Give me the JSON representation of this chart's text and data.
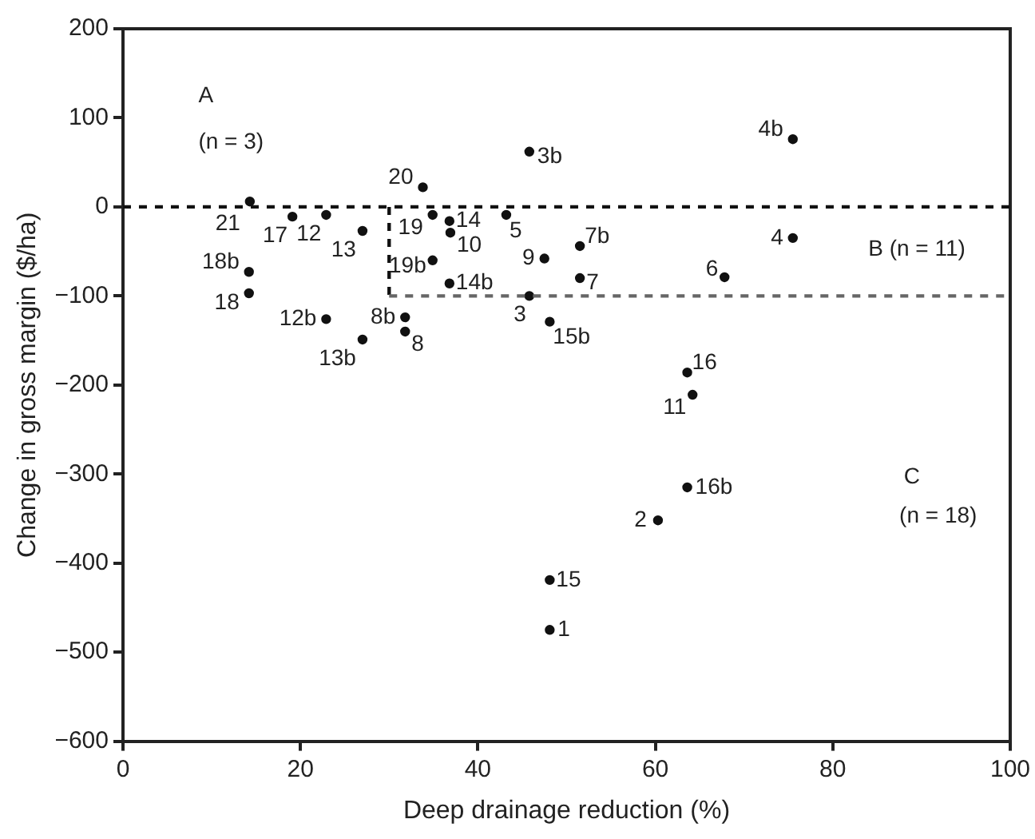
{
  "chart_data": {
    "type": "scatter",
    "xlabel": "Deep drainage reduction (%)",
    "ylabel": "Change in gross margin ($/ha)",
    "xlim": [
      0,
      100
    ],
    "xticks": [
      0,
      20,
      40,
      60,
      80,
      100
    ],
    "ylim": [
      -600,
      200
    ],
    "yticks": [
      {
        "value": -600,
        "label": "−600"
      },
      {
        "value": -500,
        "label": "−500"
      },
      {
        "value": -400,
        "label": "−400"
      },
      {
        "value": -300,
        "label": "−300"
      },
      {
        "value": -200,
        "label": "−200"
      },
      {
        "value": -100,
        "label": "−100"
      },
      0,
      100,
      200
    ],
    "grid": false,
    "legend": false,
    "marker": "circle",
    "series": [
      {
        "color": "#111111",
        "x": [
          14.3,
          19.1,
          22.9,
          27.0,
          14.2,
          14.2,
          22.9,
          27.0,
          31.8,
          31.8,
          33.8,
          34.9,
          36.8,
          36.9,
          34.9,
          36.8,
          43.2,
          45.8,
          47.5,
          45.8,
          48.1,
          51.5,
          51.5,
          75.5,
          75.5,
          67.8,
          63.6,
          64.2,
          63.6,
          60.3,
          48.1,
          48.1
        ],
        "values": [
          6,
          -11,
          -9,
          -27,
          -73,
          -97,
          -126,
          -149,
          -124,
          -140,
          22,
          -9,
          -16,
          -29,
          -60,
          -86,
          -9,
          62,
          -58,
          -100,
          -129,
          -44,
          -80,
          76,
          -35,
          -79,
          -186,
          -211,
          -315,
          -352,
          -419,
          -475
        ]
      }
    ],
    "ref_lines": [
      {
        "axis": "y",
        "value": 0,
        "color": "#111111",
        "line_style": "dashed"
      },
      {
        "axis": "x",
        "value": 30,
        "color": "#111111",
        "line_style": "dashed"
      },
      {
        "axis": "y",
        "value": -100,
        "color": "#666666",
        "line_style": "dashed"
      }
    ],
    "annotations": [
      {
        "text": "21",
        "x": 14.3,
        "y": 6
      },
      {
        "text": "17",
        "x": 19.1,
        "y": -11
      },
      {
        "text": "12",
        "x": 22.9,
        "y": -9
      },
      {
        "text": "13",
        "x": 27.0,
        "y": -27
      },
      {
        "text": "18b",
        "x": 14.2,
        "y": -73
      },
      {
        "text": "18",
        "x": 14.2,
        "y": -97
      },
      {
        "text": "12b",
        "x": 22.9,
        "y": -126
      },
      {
        "text": "13b",
        "x": 27.0,
        "y": -149
      },
      {
        "text": "8b",
        "x": 31.8,
        "y": -124
      },
      {
        "text": "8",
        "x": 31.8,
        "y": -140
      },
      {
        "text": "20",
        "x": 33.8,
        "y": 22
      },
      {
        "text": "19",
        "x": 34.9,
        "y": -9
      },
      {
        "text": "14",
        "x": 36.8,
        "y": -16
      },
      {
        "text": "10",
        "x": 36.9,
        "y": -29
      },
      {
        "text": "19b",
        "x": 34.9,
        "y": -60
      },
      {
        "text": "14b",
        "x": 36.8,
        "y": -86
      },
      {
        "text": "5",
        "x": 43.2,
        "y": -9
      },
      {
        "text": "3b",
        "x": 45.8,
        "y": 62
      },
      {
        "text": "9",
        "x": 47.5,
        "y": -58
      },
      {
        "text": "3",
        "x": 45.8,
        "y": -100
      },
      {
        "text": "15b",
        "x": 48.1,
        "y": -129
      },
      {
        "text": "7b",
        "x": 51.5,
        "y": -44
      },
      {
        "text": "7",
        "x": 51.5,
        "y": -80
      },
      {
        "text": "4b",
        "x": 75.5,
        "y": 76
      },
      {
        "text": "4",
        "x": 75.5,
        "y": -35
      },
      {
        "text": "6",
        "x": 67.8,
        "y": -79
      },
      {
        "text": "16",
        "x": 63.6,
        "y": -186
      },
      {
        "text": "11",
        "x": 64.2,
        "y": -211
      },
      {
        "text": "16b",
        "x": 63.6,
        "y": -315
      },
      {
        "text": "2",
        "x": 60.3,
        "y": -352
      },
      {
        "text": "15",
        "x": 48.1,
        "y": -419
      },
      {
        "text": "1",
        "x": 48.1,
        "y": -475
      },
      "A",
      "(n = 3)",
      "B (n = 11)",
      "C",
      "(n = 18)"
    ]
  }
}
